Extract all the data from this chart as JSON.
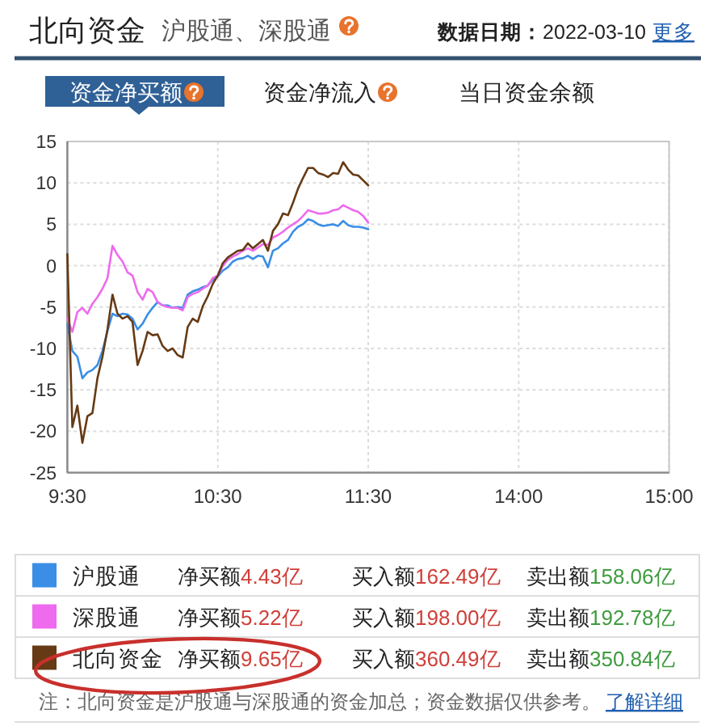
{
  "chart_data": {
    "type": "line",
    "title": "北向资金",
    "subtitle": "沪股通、深股通",
    "annotations": [
      "**数据日期：**2022-03-10",
      "更多",
      "资金净买额",
      "资金净流入",
      "当日资金余额",
      "净买额",
      "4.43亿",
      "买入额",
      "162.49亿",
      "卖出额",
      "158.06亿",
      "净买额",
      "5.22亿",
      "买入额",
      "198.00亿",
      "卖出额",
      "192.78亿",
      "净买额",
      "9.65亿",
      "买入额",
      "360.49亿",
      "卖出额",
      "350.84亿",
      "注：北向资金是沪股通与深股通的资金加总；资金数据仅供参考。",
      "了解详细"
    ],
    "categories": [
      "9:30",
      null,
      null,
      null,
      null,
      null,
      null,
      null,
      null,
      null,
      null,
      null,
      null,
      null,
      null,
      null,
      null,
      null,
      null,
      null,
      null,
      null,
      null,
      null,
      null,
      null,
      null,
      null,
      null,
      null,
      "10:30",
      null,
      null,
      null,
      null,
      null,
      null,
      null,
      null,
      null,
      null,
      null,
      null,
      null,
      null,
      null,
      null,
      null,
      null,
      null,
      null,
      null,
      null,
      null,
      null,
      null,
      null,
      null,
      null,
      null,
      "11:30",
      null,
      null,
      null,
      null,
      null,
      null,
      null,
      null,
      null,
      null,
      null,
      null,
      null,
      null,
      null,
      null,
      null,
      null,
      null,
      null,
      null,
      null,
      null,
      null,
      null,
      null,
      null,
      null,
      null,
      "14:00",
      null,
      null,
      null,
      null,
      null,
      null,
      null,
      null,
      null,
      null,
      null,
      null,
      null,
      null,
      null,
      null,
      null,
      null,
      null,
      null,
      null,
      null,
      null,
      null,
      null,
      null,
      null,
      null,
      null,
      "15:00"
    ],
    "ylim": [
      -25,
      15
    ],
    "yticks": [
      -25,
      -20,
      -15,
      -10,
      -5,
      0,
      5,
      10,
      15
    ],
    "grid": true,
    "legend": "bottom",
    "line_style": "solid",
    "series": [
      {
        "name": "沪股通",
        "color": "#3a8ee6",
        "values": [
          -7.1,
          -10.3,
          -11,
          -13.6,
          -12.9,
          -12.6,
          -12,
          -10.3,
          -7.9,
          -5.8,
          -6.1,
          -5.8,
          -5.9,
          -6.4,
          -7.7,
          -7,
          -5.9,
          -5.1,
          -4.4,
          -4.8,
          -4.8,
          -5.1,
          -5,
          -5.1,
          -3.5,
          -3.1,
          -2.9,
          -2.6,
          -2.4,
          -1.7,
          -1.3,
          -0.6,
          -0.2,
          0.5,
          0.8,
          0.9,
          1.2,
          0.8,
          1.2,
          1.1,
          -0.2,
          1.8,
          2.1,
          2.7,
          3.1,
          4.1,
          4.7,
          5,
          5.6,
          5.4,
          5,
          4.8,
          4.9,
          5,
          4.8,
          5.4,
          4.9,
          4.7,
          4.7,
          4.6,
          4.4,
          null,
          null,
          null,
          null,
          null,
          null,
          null,
          null,
          null,
          null,
          null,
          null,
          null,
          null,
          null,
          null,
          null,
          null,
          null,
          null,
          null,
          null,
          null,
          null,
          null,
          null,
          null,
          null,
          null,
          null,
          null,
          null,
          null,
          null,
          null,
          null,
          null,
          null,
          null,
          null,
          null,
          null,
          null,
          null,
          null,
          null,
          null,
          null,
          null,
          null,
          null,
          null,
          null,
          null,
          null,
          null,
          null,
          null,
          null,
          null
        ]
      },
      {
        "name": "深股通",
        "color": "#ee6aee",
        "values": [
          -6.4,
          -8,
          -5.6,
          -5.1,
          -5.8,
          -4.6,
          -3.8,
          -2.8,
          -1.5,
          2.4,
          1.3,
          0.5,
          -0.8,
          -1.2,
          -3.2,
          -4.1,
          -2.8,
          -3.2,
          -4.4,
          -4.8,
          -5,
          -5.1,
          -5.1,
          -5.4,
          -3.8,
          -3.4,
          -3.2,
          -2.8,
          -2.4,
          -1.5,
          -1.2,
          0,
          0.7,
          1.1,
          1.4,
          1.8,
          2.1,
          1.8,
          2.2,
          2.6,
          2.5,
          3.4,
          3.7,
          4.1,
          4.6,
          5,
          5.4,
          6,
          6.7,
          6.5,
          6.3,
          6.3,
          6.4,
          6.7,
          6.8,
          7.3,
          7,
          6.7,
          6.5,
          6,
          5.2,
          null,
          null,
          null,
          null,
          null,
          null,
          null,
          null,
          null,
          null,
          null,
          null,
          null,
          null,
          null,
          null,
          null,
          null,
          null,
          null,
          null,
          null,
          null,
          null,
          null,
          null,
          null,
          null,
          null,
          null,
          null,
          null,
          null,
          null,
          null,
          null,
          null,
          null,
          null,
          null,
          null,
          null,
          null,
          null,
          null,
          null,
          null,
          null,
          null,
          null,
          null,
          null,
          null,
          null,
          null,
          null,
          null,
          null,
          null,
          null
        ]
      },
      {
        "name": "北向资金",
        "color": "#663a14",
        "values": [
          1.4,
          -19.5,
          -16.9,
          -21.4,
          -18.2,
          -17.8,
          -13.6,
          -11,
          -7.7,
          -3.5,
          -5.8,
          -6.4,
          -6.1,
          -6.8,
          -12,
          -10.3,
          -8,
          -8.4,
          -8.3,
          -9.7,
          -10.3,
          -10,
          -10.8,
          -11.1,
          -7.4,
          -6.4,
          -6.8,
          -4.9,
          -3.7,
          -2.2,
          -1.2,
          0.3,
          1,
          1.4,
          1.8,
          1.9,
          2.7,
          2.1,
          2.6,
          3.1,
          1.8,
          4.2,
          5,
          6.3,
          6.1,
          7.6,
          9.3,
          10.6,
          11.8,
          11.8,
          11.2,
          11,
          10.7,
          11.2,
          11.1,
          12.5,
          11.6,
          11,
          10.9,
          10.3,
          9.7,
          null,
          null,
          null,
          null,
          null,
          null,
          null,
          null,
          null,
          null,
          null,
          null,
          null,
          null,
          null,
          null,
          null,
          null,
          null,
          null,
          null,
          null,
          null,
          null,
          null,
          null,
          null,
          null,
          null,
          null,
          null,
          null,
          null,
          null,
          null,
          null,
          null,
          null,
          null,
          null,
          null,
          null,
          null,
          null,
          null,
          null,
          null,
          null,
          null,
          null,
          null,
          null,
          null,
          null,
          null,
          null,
          null,
          null,
          null,
          null
        ]
      }
    ]
  }
}
